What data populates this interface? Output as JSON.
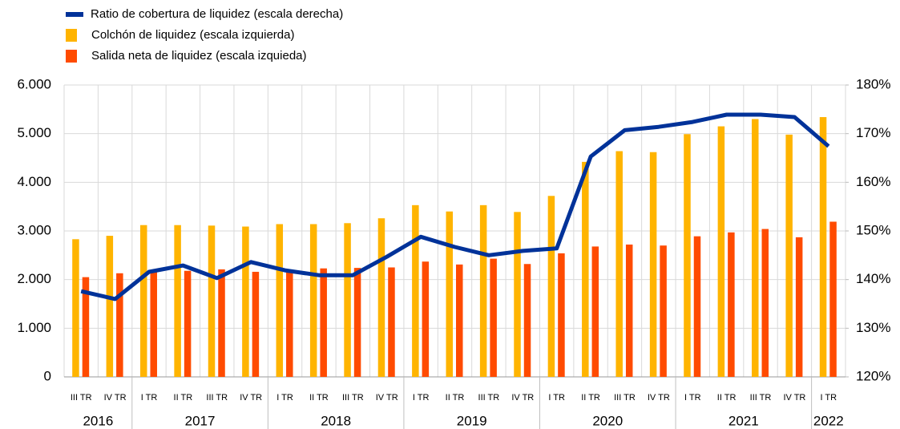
{
  "chart_data": {
    "type": "bar-line",
    "groups": [
      {
        "name": "2016",
        "categories": [
          "III TR",
          "IV TR"
        ]
      },
      {
        "name": "2017",
        "categories": [
          "I TR",
          "II TR",
          "III TR",
          "IV TR"
        ]
      },
      {
        "name": "2018",
        "categories": [
          "I TR",
          "II TR",
          "III TR",
          "IV TR"
        ]
      },
      {
        "name": "2019",
        "categories": [
          "I TR",
          "II TR",
          "III TR",
          "IV TR"
        ]
      },
      {
        "name": "2020",
        "categories": [
          "I TR",
          "II TR",
          "III TR",
          "IV TR"
        ]
      },
      {
        "name": "2021",
        "categories": [
          "I TR",
          "II TR",
          "III TR",
          "IV TR"
        ]
      },
      {
        "name": "2022",
        "categories": [
          "I TR"
        ]
      }
    ],
    "series": [
      {
        "name": "Ratio de cobertura de liquidez (escala derecha)",
        "type": "line",
        "axis": "y2",
        "color": "#003299",
        "values": [
          137.6,
          136.0,
          141.6,
          142.9,
          140.3,
          143.6,
          141.9,
          140.9,
          140.9,
          144.7,
          148.8,
          146.7,
          145.0,
          145.9,
          146.4,
          165.3,
          170.7,
          171.4,
          172.4,
          173.9,
          173.9,
          173.4,
          167.4
        ]
      },
      {
        "name": "Colchón de liquidez (escala izquierda)",
        "type": "bar",
        "color": "#FFB400",
        "values": [
          2830,
          2900,
          3120,
          3120,
          3110,
          3090,
          3140,
          3140,
          3160,
          3260,
          3530,
          3400,
          3530,
          3390,
          3720,
          4420,
          4640,
          4620,
          4990,
          5150,
          5300,
          4980,
          5340
        ]
      },
      {
        "name": "Salida neta de liquidez (escala izquieda)",
        "type": "bar",
        "color": "#FF4B00",
        "values": [
          2050,
          2130,
          2180,
          2180,
          2210,
          2160,
          2160,
          2230,
          2240,
          2250,
          2370,
          2310,
          2430,
          2320,
          2540,
          2680,
          2720,
          2700,
          2890,
          2970,
          3040,
          2870,
          3190
        ]
      }
    ],
    "ylim": [
      0,
      6000
    ],
    "yticks": [
      0,
      {
        "value": 1000,
        "label": "1.000"
      },
      {
        "value": 2000,
        "label": "2.000"
      },
      {
        "value": 3000,
        "label": "3.000"
      },
      {
        "value": 4000,
        "label": "4.000"
      },
      {
        "value": 5000,
        "label": "5.000"
      },
      {
        "value": 6000,
        "label": "6.000"
      }
    ],
    "y2lim": [
      120,
      180
    ],
    "y2ticks": [
      {
        "value": 120,
        "label": "120%"
      },
      {
        "value": 130,
        "label": "130%"
      },
      {
        "value": 140,
        "label": "140%"
      },
      {
        "value": 150,
        "label": "150%"
      },
      {
        "value": 160,
        "label": "160%"
      },
      {
        "value": 170,
        "label": "170%"
      },
      {
        "value": 180,
        "label": "180%"
      }
    ],
    "grid": true,
    "legend": "top-left"
  }
}
